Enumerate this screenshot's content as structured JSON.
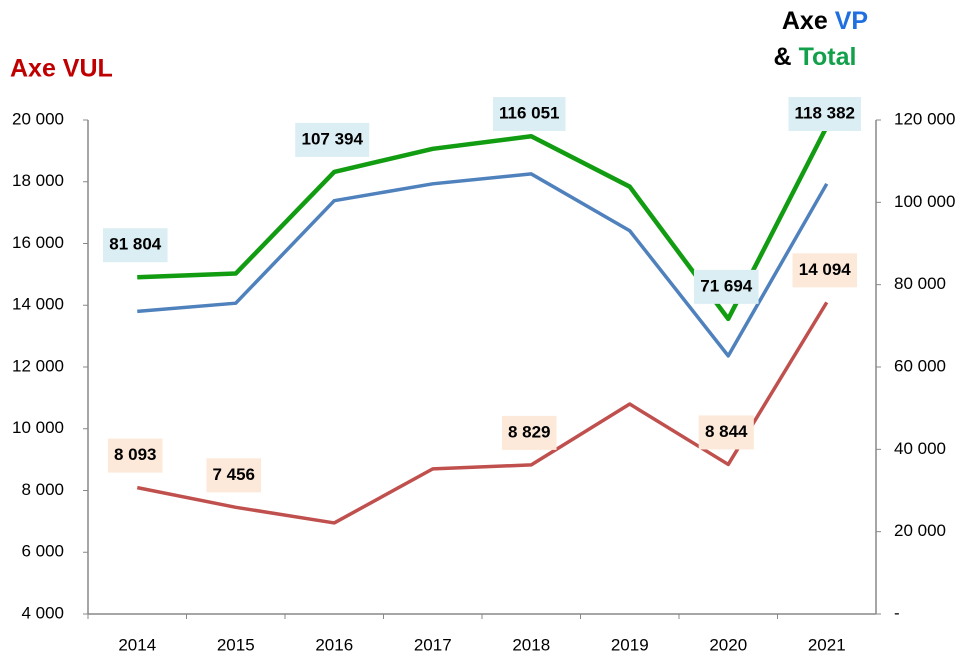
{
  "chart_data": {
    "type": "line",
    "y_label": "Axe VUL",
    "y2_label_parts": [
      "Axe",
      "VP",
      "&",
      "Total"
    ],
    "y2_label_colors": [
      "#000000",
      "#1f6fe0",
      "#000000",
      "#12a04a"
    ],
    "categories": [
      "2014",
      "2015",
      "2016",
      "2017",
      "2018",
      "2019",
      "2020",
      "2021"
    ],
    "series": [
      {
        "color": "#4f81bd",
        "axis": "y2",
        "values": [
          73500,
          75500,
          100400,
          104500,
          106900,
          93100,
          62700,
          104500
        ]
      },
      {
        "color": "#129c12",
        "axis": "y2",
        "label_bg": "#dbeef4",
        "values": [
          81804,
          82700,
          107394,
          113000,
          116051,
          103800,
          71694,
          118382
        ],
        "value_labels": [
          "81 804",
          null,
          "107 394",
          null,
          "116 051",
          null,
          "71 694",
          "118 382"
        ]
      },
      {
        "color": "#c0504d",
        "label_bg": "#fde9d9",
        "values": [
          8093,
          7456,
          6950,
          8700,
          8829,
          10800,
          8844,
          14094
        ],
        "value_labels": [
          "8 093",
          "7 456",
          null,
          null,
          "8 829",
          null,
          "8 844",
          "14 094"
        ]
      }
    ],
    "ylim": [
      4000,
      20000
    ],
    "yticks": [
      {
        "value": 4000,
        "label": "4 000"
      },
      {
        "value": 6000,
        "label": "6 000"
      },
      {
        "value": 8000,
        "label": "8 000"
      },
      {
        "value": 10000,
        "label": "10 000"
      },
      {
        "value": 12000,
        "label": "12 000"
      },
      {
        "value": 14000,
        "label": "14 000"
      },
      {
        "value": 16000,
        "label": "16 000"
      },
      {
        "value": 18000,
        "label": "18 000"
      },
      {
        "value": 20000,
        "label": "20 000"
      }
    ],
    "y2lim": [
      0,
      120000
    ],
    "y2ticks": [
      {
        "value": 0,
        "label": "-"
      },
      {
        "value": 20000,
        "label": "20 000"
      },
      {
        "value": 40000,
        "label": "40 000"
      },
      {
        "value": 60000,
        "label": "60 000"
      },
      {
        "value": 80000,
        "label": "80 000"
      },
      {
        "value": 100000,
        "label": "100 000"
      },
      {
        "value": 120000,
        "label": "120 000"
      }
    ]
  }
}
